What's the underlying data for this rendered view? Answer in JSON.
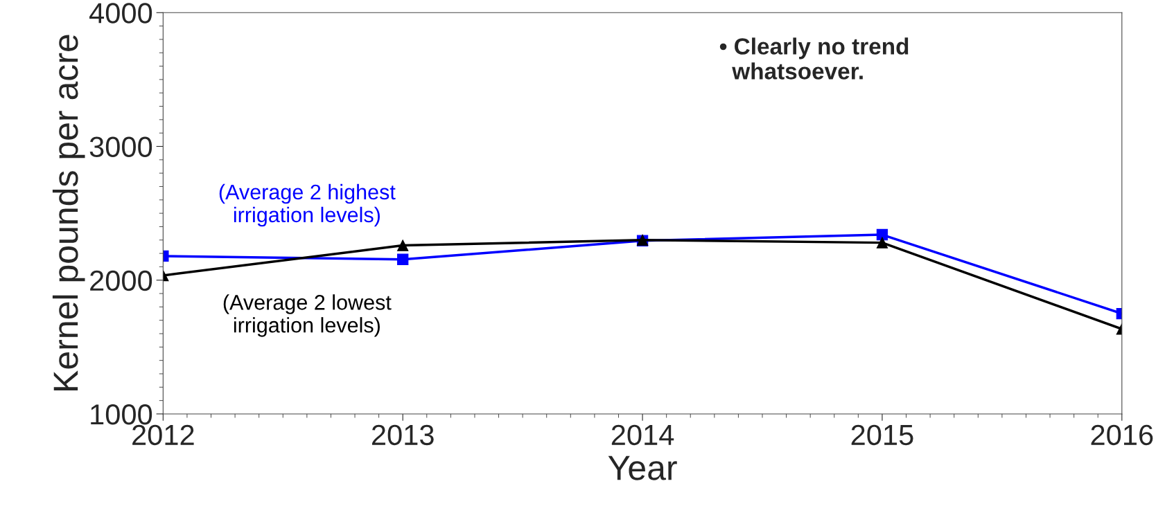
{
  "chart_data": {
    "type": "line",
    "xlabel": "Year",
    "ylabel": "Kernel pounds per acre",
    "x": [
      2012,
      2013,
      2014,
      2015,
      2016
    ],
    "series": [
      {
        "name": "(Average 2 highest irrigation levels)",
        "color": "#0000ff",
        "marker": "square",
        "values": [
          2180,
          2155,
          2295,
          2340,
          1750
        ]
      },
      {
        "name": "(Average 2 lowest irrigation levels)",
        "color": "#000000",
        "marker": "triangle",
        "values": [
          2035,
          2260,
          2300,
          2280,
          1635
        ]
      }
    ],
    "annotations": [
      "• Clearly no trend\n  whatsoever."
    ],
    "xlim": [
      2012,
      2016
    ],
    "xticks": [
      2012,
      2013,
      2014,
      2015,
      2016
    ],
    "ylim": [
      1000,
      4000
    ],
    "yticks": [
      1000,
      2000,
      3000,
      4000
    ],
    "grid": false,
    "legend": false,
    "line_style": "solid"
  }
}
